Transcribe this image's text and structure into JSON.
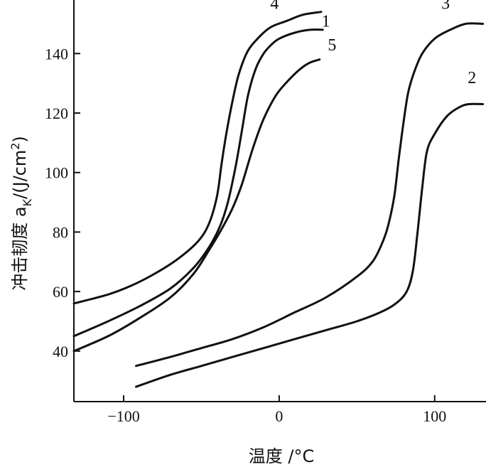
{
  "chart_data": {
    "type": "line",
    "title": "",
    "xlabel": "温度 /°C",
    "ylabel_main": "冲击韧度 a",
    "ylabel_sub": "K",
    "ylabel_unit": "/(J/cm",
    "ylabel_sup": "2",
    "ylabel_close": ")",
    "xlim": [
      -132,
      133
    ],
    "ylim": [
      23,
      158
    ],
    "grid": false,
    "x_ticks": [
      -100,
      0,
      100
    ],
    "x_tick_labels": [
      "−100",
      "0",
      "100"
    ],
    "y_ticks": [
      40,
      60,
      80,
      100,
      120,
      140
    ],
    "y_tick_labels": [
      "40",
      "60",
      "80",
      "100",
      "120",
      "140"
    ],
    "series": [
      {
        "name": "1",
        "points": [
          [
            -132,
            45
          ],
          [
            -110,
            50
          ],
          [
            -90,
            55
          ],
          [
            -70,
            61
          ],
          [
            -55,
            68
          ],
          [
            -45,
            75
          ],
          [
            -38,
            82
          ],
          [
            -33,
            90
          ],
          [
            -28,
            102
          ],
          [
            -24,
            114
          ],
          [
            -20,
            126
          ],
          [
            -15,
            135
          ],
          [
            -10,
            140
          ],
          [
            -5,
            143
          ],
          [
            0,
            145
          ],
          [
            10,
            147
          ],
          [
            20,
            148
          ],
          [
            28,
            148
          ]
        ],
        "label_at": [
          30,
          149
        ]
      },
      {
        "name": "2",
        "points": [
          [
            -92,
            28
          ],
          [
            -70,
            32
          ],
          [
            -50,
            35
          ],
          [
            -30,
            38
          ],
          [
            -10,
            41
          ],
          [
            10,
            44
          ],
          [
            30,
            47
          ],
          [
            50,
            50
          ],
          [
            65,
            53
          ],
          [
            75,
            56
          ],
          [
            82,
            60
          ],
          [
            86,
            67
          ],
          [
            89,
            80
          ],
          [
            92,
            95
          ],
          [
            95,
            107
          ],
          [
            100,
            113
          ],
          [
            108,
            119
          ],
          [
            116,
            122
          ],
          [
            122,
            123
          ],
          [
            131,
            123
          ]
        ],
        "label_at": [
          124,
          130
        ]
      },
      {
        "name": "3",
        "points": [
          [
            -92,
            35
          ],
          [
            -70,
            38
          ],
          [
            -50,
            41
          ],
          [
            -30,
            44
          ],
          [
            -10,
            48
          ],
          [
            10,
            53
          ],
          [
            30,
            58
          ],
          [
            50,
            65
          ],
          [
            60,
            70
          ],
          [
            66,
            76
          ],
          [
            70,
            82
          ],
          [
            74,
            92
          ],
          [
            77,
            105
          ],
          [
            80,
            117
          ],
          [
            83,
            127
          ],
          [
            87,
            134
          ],
          [
            92,
            140
          ],
          [
            100,
            145
          ],
          [
            110,
            148
          ],
          [
            120,
            150
          ],
          [
            131,
            150
          ]
        ],
        "label_at": [
          107,
          155
        ]
      },
      {
        "name": "4",
        "points": [
          [
            -132,
            56
          ],
          [
            -110,
            59
          ],
          [
            -95,
            62
          ],
          [
            -80,
            66
          ],
          [
            -65,
            71
          ],
          [
            -52,
            77
          ],
          [
            -45,
            83
          ],
          [
            -40,
            92
          ],
          [
            -37,
            103
          ],
          [
            -34,
            113
          ],
          [
            -30,
            124
          ],
          [
            -26,
            133
          ],
          [
            -20,
            141
          ],
          [
            -12,
            146
          ],
          [
            -5,
            149
          ],
          [
            5,
            151
          ],
          [
            15,
            153
          ],
          [
            27,
            154
          ]
        ],
        "label_at": [
          -3,
          155
        ]
      },
      {
        "name": "5",
        "points": [
          [
            -132,
            40
          ],
          [
            -110,
            45
          ],
          [
            -90,
            51
          ],
          [
            -70,
            58
          ],
          [
            -55,
            66
          ],
          [
            -45,
            74
          ],
          [
            -37,
            81
          ],
          [
            -30,
            88
          ],
          [
            -24,
            96
          ],
          [
            -17,
            108
          ],
          [
            -10,
            118
          ],
          [
            -2,
            126
          ],
          [
            6,
            131
          ],
          [
            14,
            135
          ],
          [
            20,
            137
          ],
          [
            26,
            138
          ]
        ],
        "label_at": [
          34,
          141
        ]
      }
    ]
  }
}
